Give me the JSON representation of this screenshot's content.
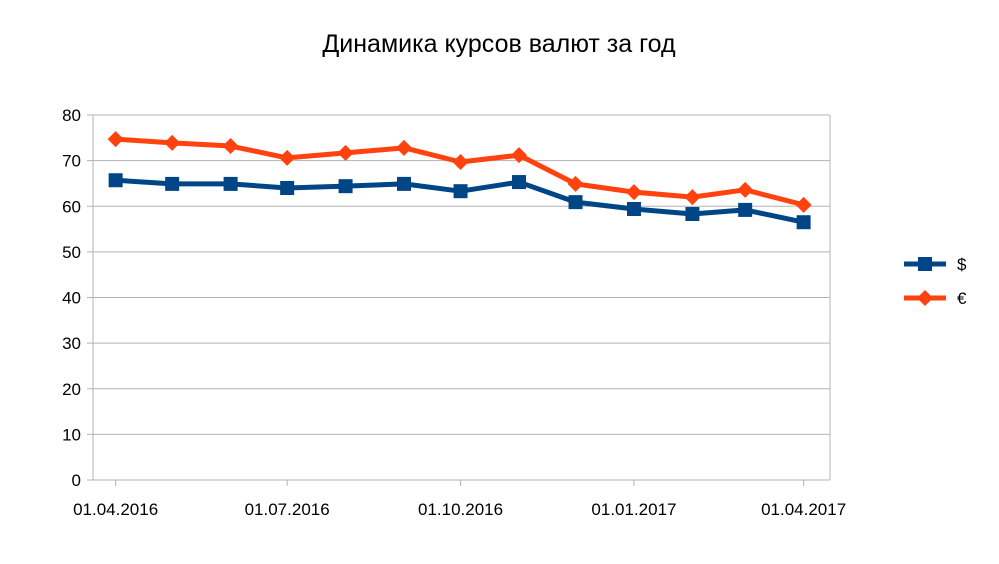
{
  "chart_data": {
    "type": "line",
    "title": "Динамика курсов валют за год",
    "xlabel": "",
    "ylabel": "",
    "ylim": [
      0,
      80
    ],
    "yticks": [
      0,
      10,
      20,
      30,
      40,
      50,
      60,
      70,
      80
    ],
    "xlim": [
      "2016-03-20",
      "2017-04-15"
    ],
    "xticks": [
      {
        "date": "2016-04-01",
        "label": "01.04.2016"
      },
      {
        "date": "2016-07-01",
        "label": "01.07.2016"
      },
      {
        "date": "2016-10-01",
        "label": "01.10.2016"
      },
      {
        "date": "2017-01-01",
        "label": "01.01.2017"
      },
      {
        "date": "2017-04-01",
        "label": "01.04.2017"
      }
    ],
    "grid": true,
    "legend_position": "right",
    "x": [
      "2016-04-01",
      "2016-05-01",
      "2016-06-01",
      "2016-07-01",
      "2016-08-01",
      "2016-09-01",
      "2016-10-01",
      "2016-11-01",
      "2016-12-01",
      "2017-01-01",
      "2017-02-01",
      "2017-03-01",
      "2017-04-01"
    ],
    "series": [
      {
        "name": "$",
        "color": "#004586",
        "marker": "square",
        "values": [
          65.7,
          64.9,
          64.9,
          64.0,
          64.4,
          64.9,
          63.3,
          65.3,
          60.9,
          59.4,
          58.3,
          59.2,
          56.5
        ]
      },
      {
        "name": "€",
        "color": "#ff420e",
        "marker": "diamond",
        "values": [
          74.7,
          73.9,
          73.2,
          70.6,
          71.7,
          72.8,
          69.7,
          71.2,
          64.9,
          63.1,
          62.0,
          63.6,
          60.3
        ]
      }
    ]
  }
}
